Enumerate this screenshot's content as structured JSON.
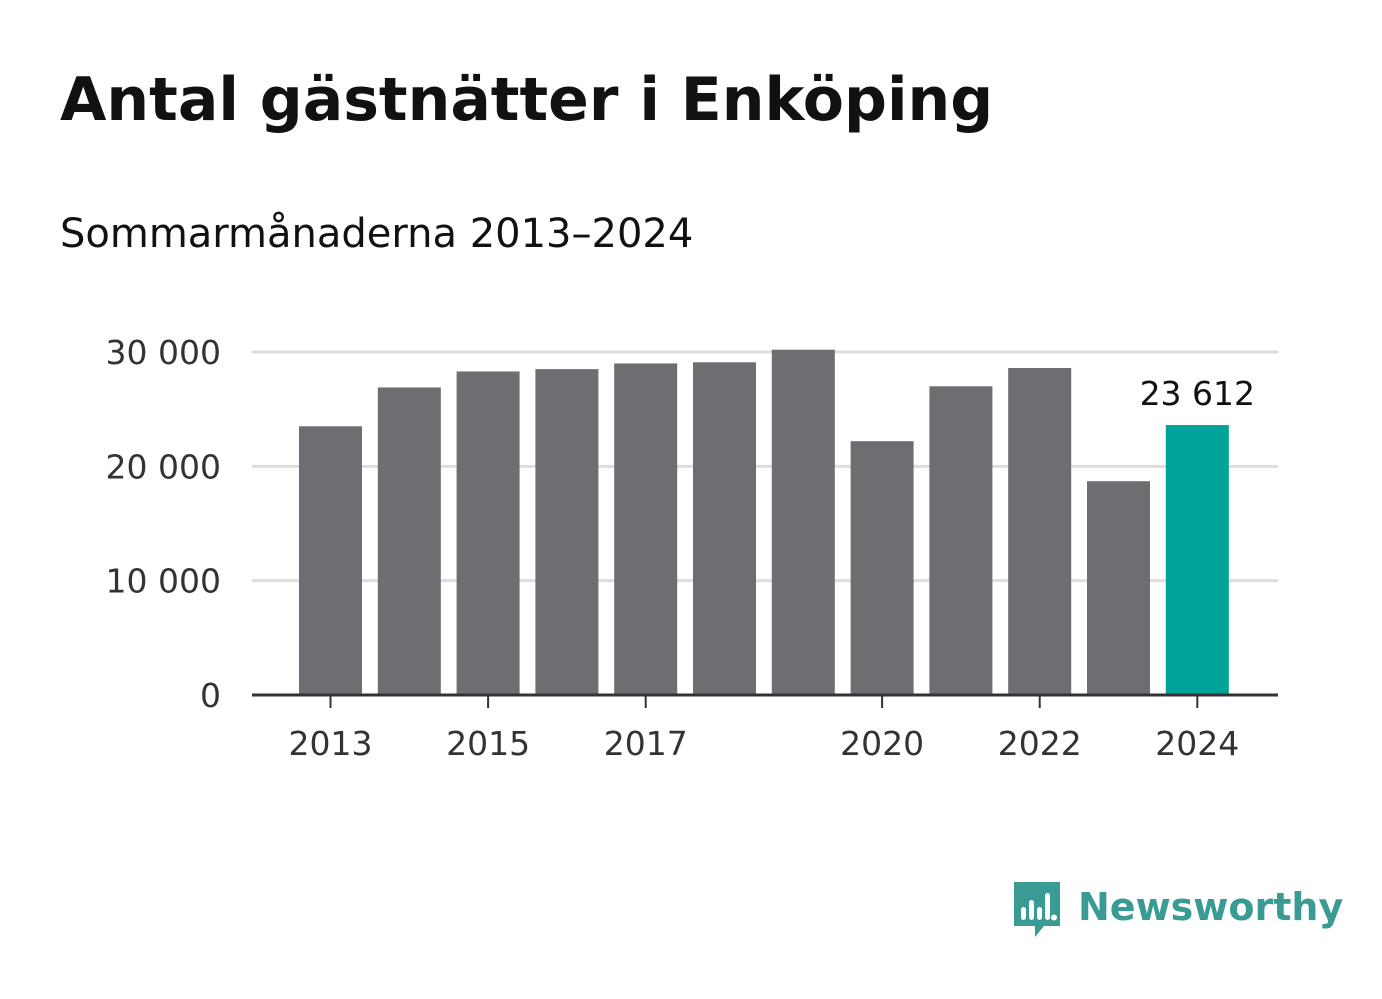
{
  "chart_data": {
    "type": "bar",
    "title": "Antal gästnätter i Enköping",
    "subtitle": "Sommarmånaderna 2013–2024",
    "categories": [
      "2013",
      "2014",
      "2015",
      "2016",
      "2017",
      "2018",
      "2019",
      "2020",
      "2021",
      "2022",
      "2023",
      "2024"
    ],
    "values": [
      23500,
      26900,
      28300,
      28500,
      29000,
      29100,
      30200,
      22200,
      27000,
      28600,
      18700,
      23612
    ],
    "xtick_labels": [
      "2013",
      "2015",
      "2017",
      "2020",
      "2022",
      "2024"
    ],
    "yticks": [
      0,
      10000,
      20000,
      30000
    ],
    "ytick_labels": [
      "0",
      "10 000",
      "20 000",
      "30 000"
    ],
    "ylim": [
      0,
      30000
    ],
    "grid": true,
    "highlight_index": 11,
    "annotation": "23 612",
    "colors": {
      "bar": "#6e6d72",
      "highlight": "#00a39a",
      "grid": "#dddddd",
      "axis": "#333333"
    }
  },
  "brand": {
    "name": "Newsworthy",
    "icon": "newsworthy-logo-icon",
    "color": "#3a9a94"
  }
}
